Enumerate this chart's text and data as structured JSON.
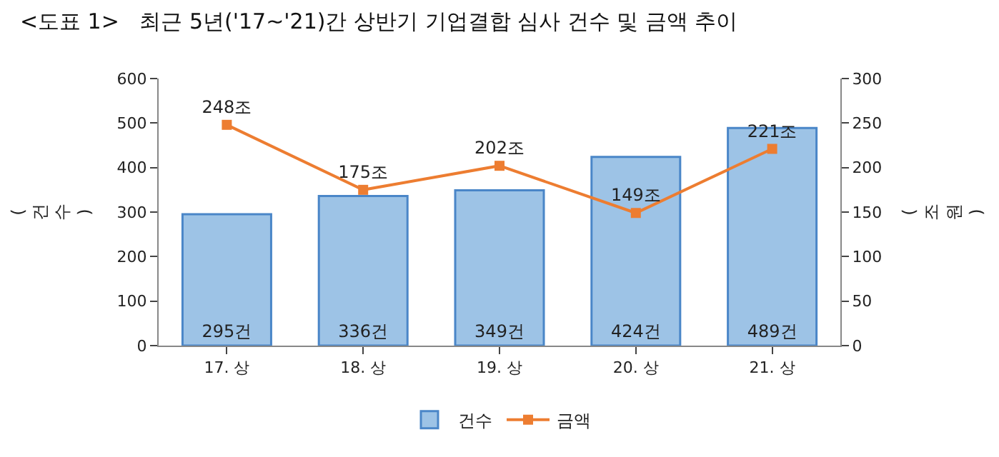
{
  "chart_data": {
    "type": "bar",
    "title": "<도표 1>   최근 5년('17~'21)간 상반기 기업결합 심사 건수 및 금액 추이",
    "ylabel": "(건수)",
    "y2label": "(조원)",
    "categories": [
      "17. 상",
      "18. 상",
      "19. 상",
      "20. 상",
      "21. 상"
    ],
    "series": [
      {
        "name": "건수",
        "color": "#9dc3e6",
        "values": [
          295,
          336,
          349,
          424,
          489
        ],
        "value_labels": [
          "295건",
          "336건",
          "349건",
          "424건",
          "489건"
        ]
      },
      {
        "name": "금액",
        "type": "line",
        "axis": "y2",
        "color": "#ed7d31",
        "marker": "square",
        "values": [
          248,
          175,
          202,
          149,
          221
        ],
        "value_labels": [
          "248조",
          "175조",
          "202조",
          "149조",
          "221조"
        ]
      }
    ],
    "ylim": [
      0,
      600
    ],
    "yticks": [
      0,
      100,
      200,
      300,
      400,
      500,
      600
    ],
    "y2lim": [
      0,
      300
    ],
    "y2ticks": [
      0,
      50,
      100,
      150,
      200,
      250,
      300
    ],
    "legend": "bottom"
  }
}
